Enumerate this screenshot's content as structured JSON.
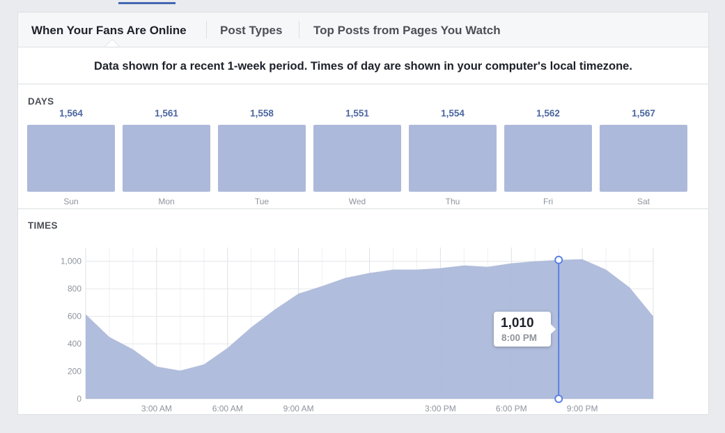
{
  "tabs": [
    {
      "label": "When Your Fans Are Online",
      "active": true
    },
    {
      "label": "Post Types",
      "active": false
    },
    {
      "label": "Top Posts from Pages You Watch",
      "active": false
    }
  ],
  "notice": "Data shown for a recent 1-week period. Times of day are shown in your computer's local timezone.",
  "days_label": "DAYS",
  "times_label": "TIMES",
  "tooltip": {
    "value": "1,010",
    "time": "8:00 PM"
  },
  "colors": {
    "bar": "#adb9da",
    "area": "#adb9da",
    "cursor": "#5b80e4",
    "value_text": "#4b66a0"
  },
  "chart_data": [
    {
      "type": "bar",
      "title": "DAYS",
      "categories": [
        "Sun",
        "Mon",
        "Tue",
        "Wed",
        "Thu",
        "Fri",
        "Sat"
      ],
      "values": [
        1564,
        1561,
        1558,
        1551,
        1554,
        1562,
        1567
      ],
      "value_labels": [
        "1,564",
        "1,561",
        "1,558",
        "1,551",
        "1,554",
        "1,562",
        "1,567"
      ]
    },
    {
      "type": "area",
      "title": "TIMES",
      "x": [
        0,
        1,
        2,
        3,
        4,
        5,
        6,
        7,
        8,
        9,
        10,
        11,
        12,
        13,
        14,
        15,
        16,
        17,
        18,
        19,
        20,
        21,
        22,
        23,
        24
      ],
      "values": [
        615,
        450,
        360,
        235,
        205,
        250,
        370,
        520,
        650,
        765,
        820,
        880,
        915,
        940,
        940,
        950,
        970,
        960,
        985,
        1000,
        1010,
        1015,
        940,
        810,
        600
      ],
      "xticks": [
        {
          "x": 3,
          "label": "3:00 AM"
        },
        {
          "x": 6,
          "label": "6:00 AM"
        },
        {
          "x": 9,
          "label": "9:00 AM"
        },
        {
          "x": 15,
          "label": "3:00 PM"
        },
        {
          "x": 18,
          "label": "6:00 PM"
        },
        {
          "x": 21,
          "label": "9:00 PM"
        }
      ],
      "yticks": [
        0,
        200,
        400,
        600,
        800,
        1000
      ],
      "ytick_labels": [
        "0",
        "200",
        "400",
        "600",
        "800",
        "1,000"
      ],
      "ylim": [
        0,
        1100
      ],
      "xlim": [
        0,
        24
      ],
      "grid": true,
      "highlight": {
        "x": 20,
        "value": 1010
      }
    }
  ]
}
